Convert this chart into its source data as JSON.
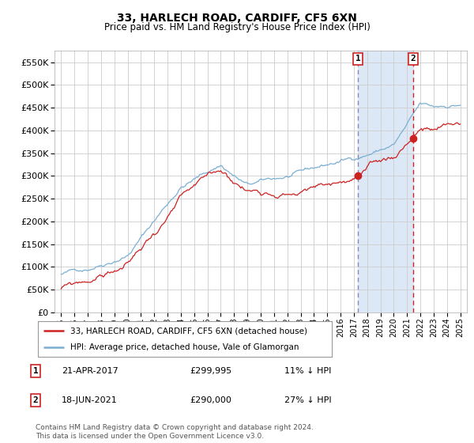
{
  "title": "33, HARLECH ROAD, CARDIFF, CF5 6XN",
  "subtitle": "Price paid vs. HM Land Registry's House Price Index (HPI)",
  "yticks": [
    0,
    50000,
    100000,
    150000,
    200000,
    250000,
    300000,
    350000,
    400000,
    450000,
    500000,
    550000
  ],
  "ylim": [
    0,
    575000
  ],
  "hpi_color": "#7aafd4",
  "sale_color": "#cc2222",
  "vline1_color": "#8888bb",
  "vline2_color": "#cc2222",
  "shade_color": "#dce8f5",
  "sale1_year": 2017.302,
  "sale2_year": 2021.458,
  "sale1": {
    "date": "21-APR-2017",
    "price": 299995,
    "pct": "11% ↓ HPI"
  },
  "sale2": {
    "date": "18-JUN-2021",
    "price": 290000,
    "pct": "27% ↓ HPI"
  },
  "legend_line1": "33, HARLECH ROAD, CARDIFF, CF5 6XN (detached house)",
  "legend_line2": "HPI: Average price, detached house, Vale of Glamorgan",
  "footnote": "Contains HM Land Registry data © Crown copyright and database right 2024.\nThis data is licensed under the Open Government Licence v3.0.",
  "background_color": "#ffffff",
  "grid_color": "#cccccc",
  "xlim_left": 1994.5,
  "xlim_right": 2025.5
}
